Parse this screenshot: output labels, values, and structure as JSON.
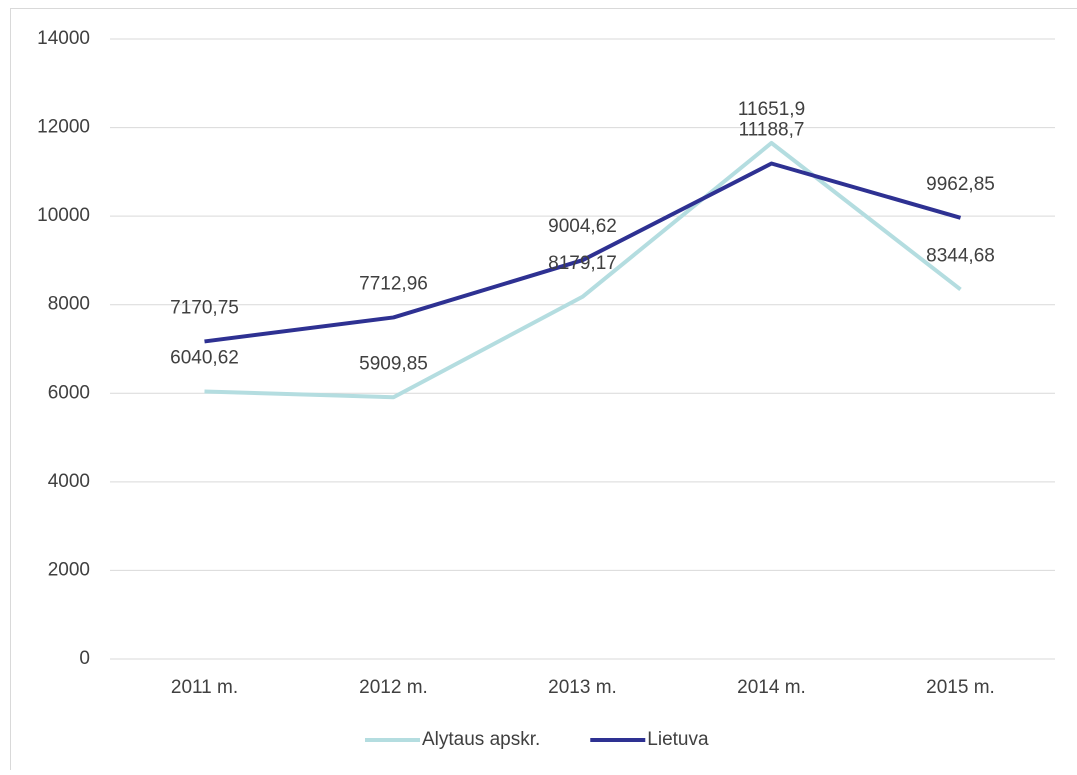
{
  "chart_data": {
    "type": "line",
    "categories": [
      "2011 m.",
      "2012 m.",
      "2013 m.",
      "2014 m.",
      "2015 m."
    ],
    "series": [
      {
        "name": "Alytaus apskr.",
        "color": "#b4dde0",
        "values": [
          6040.62,
          5909.85,
          8179.17,
          11651.9,
          8344.68
        ],
        "value_labels": [
          "6040,62",
          "5909,85",
          "8179,17",
          "11651,9",
          "8344,68"
        ]
      },
      {
        "name": "Lietuva",
        "color": "#2e3192",
        "values": [
          7170.75,
          7712.96,
          9004.62,
          11188.7,
          9962.85
        ],
        "value_labels": [
          "7170,75",
          "7712,96",
          "9004,62",
          "11188,7",
          "9962,85"
        ]
      }
    ],
    "ylim": [
      0,
      14000
    ],
    "yticks": [
      0,
      2000,
      4000,
      6000,
      8000,
      10000,
      12000,
      14000
    ],
    "grid": true,
    "legend": "bottom"
  }
}
